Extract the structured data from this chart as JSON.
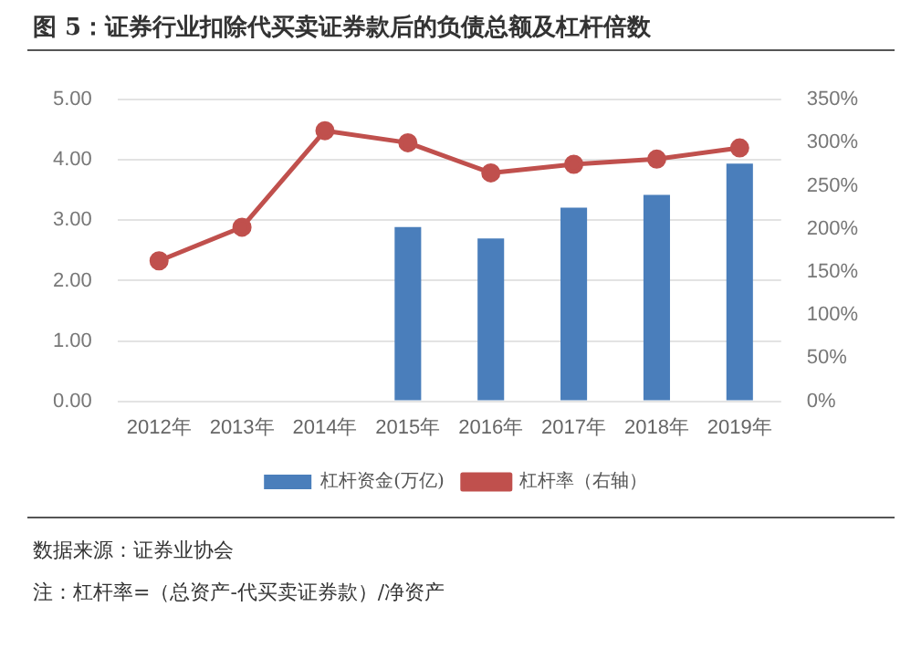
{
  "chart_data": {
    "type": "bar",
    "title": "图 5：证券行业扣除代买卖证券款后的负债总额及杠杆倍数",
    "categories": [
      "2012年",
      "2013年",
      "2014年",
      "2015年",
      "2016年",
      "2017年",
      "2018年",
      "2019年"
    ],
    "series": [
      {
        "name": "杠杆资金(万亿)",
        "color": "#4a7ebb",
        "values": [
          null,
          null,
          null,
          2.89,
          2.7,
          3.21,
          3.42,
          3.94
        ]
      },
      {
        "name": "杠杆率（右轴）",
        "type": "line",
        "axis": "y2",
        "color": "#c0504d",
        "values": [
          163,
          202,
          314,
          300,
          265,
          275,
          281,
          294
        ]
      }
    ],
    "ylim": [
      0,
      5
    ],
    "yticks": [
      {
        "value": 0,
        "label": "0.00"
      },
      {
        "value": 1,
        "label": "1.00"
      },
      {
        "value": 2,
        "label": "2.00"
      },
      {
        "value": 3,
        "label": "3.00"
      },
      {
        "value": 4,
        "label": "4.00"
      },
      {
        "value": 5,
        "label": "5.00"
      }
    ],
    "y2lim": [
      0,
      350
    ],
    "y2ticks": [
      {
        "value": 0,
        "label": "0%"
      },
      {
        "value": 50,
        "label": "50%"
      },
      {
        "value": 100,
        "label": "100%"
      },
      {
        "value": 150,
        "label": "150%"
      },
      {
        "value": 200,
        "label": "200%"
      },
      {
        "value": 250,
        "label": "250%"
      },
      {
        "value": 300,
        "label": "300%"
      },
      {
        "value": 350,
        "label": "350%"
      }
    ],
    "grid": "y",
    "legend": "bottom",
    "marker": "circle",
    "line_style": "solid",
    "annotations": [
      "数据来源：证券业协会",
      "注：杠杆率=（总资产-代买卖证券款）/净资产"
    ]
  }
}
